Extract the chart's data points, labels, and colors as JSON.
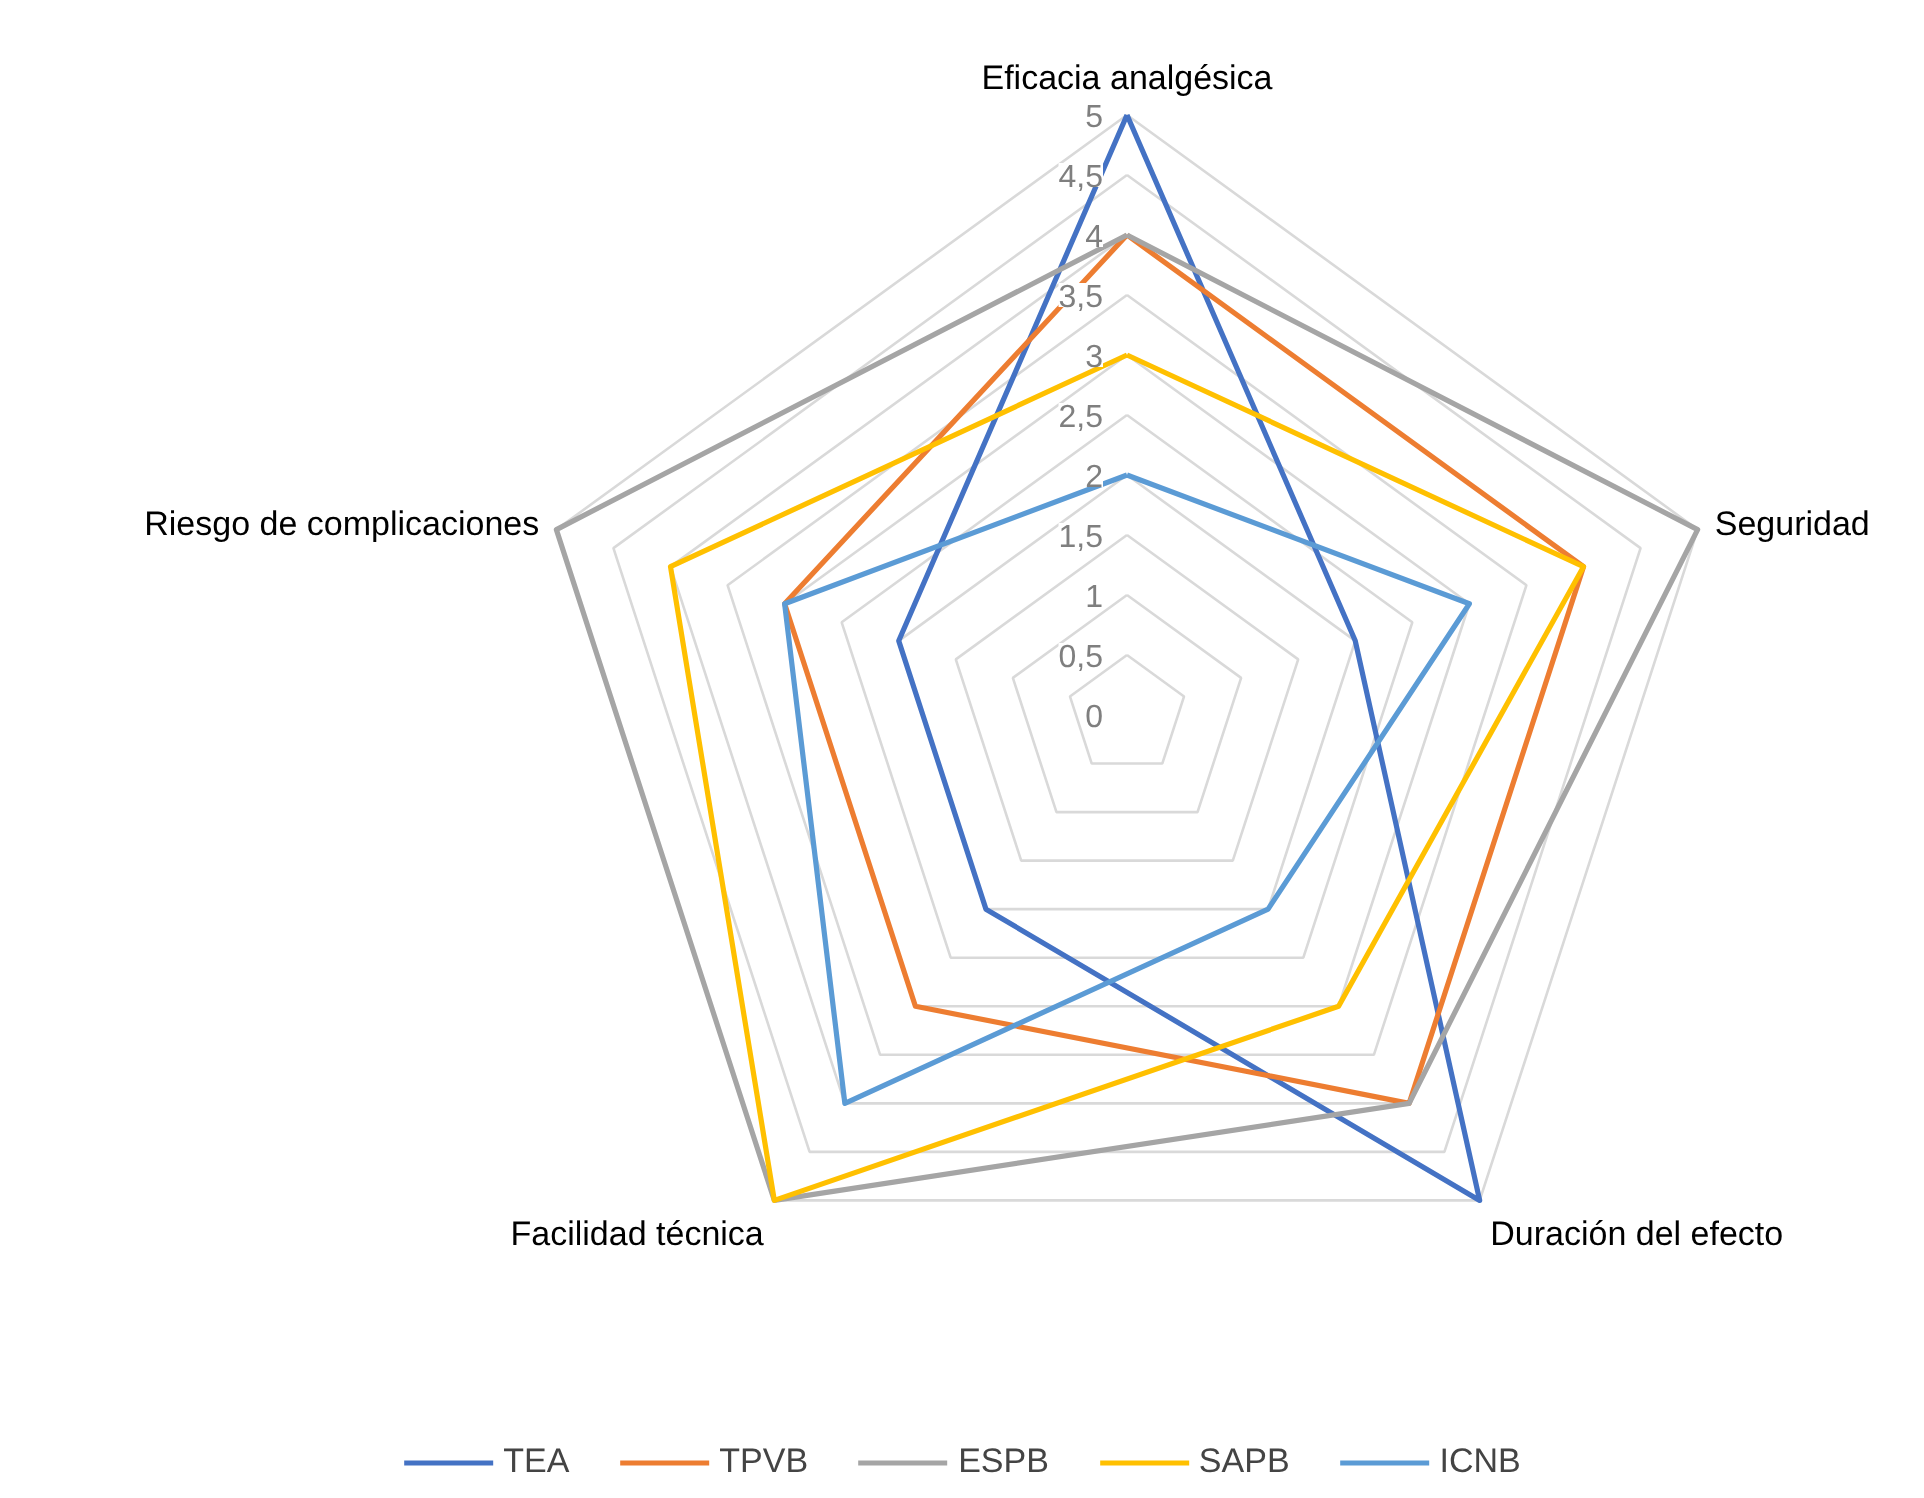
{
  "chart_data": {
    "type": "radar",
    "categories": [
      "Eficacia analgésica",
      "Seguridad",
      "Duración del efecto",
      "Facilidad técnica",
      "Riesgo de complicaciones"
    ],
    "series": [
      {
        "name": "TEA",
        "color": "#4472c4",
        "values": [
          5,
          2,
          5,
          2,
          2
        ]
      },
      {
        "name": "TPVB",
        "color": "#ed7d31",
        "values": [
          4,
          4,
          4,
          3,
          3
        ]
      },
      {
        "name": "ESPB",
        "color": "#a5a5a5",
        "values": [
          4,
          5,
          4,
          5,
          5
        ]
      },
      {
        "name": "SAPB",
        "color": "#ffc000",
        "values": [
          3,
          4,
          3,
          5,
          4
        ]
      },
      {
        "name": "ICNB",
        "color": "#5b9bd5",
        "values": [
          2,
          3,
          2,
          4,
          3
        ]
      }
    ],
    "ylim": [
      0,
      5
    ],
    "yticks": [
      0,
      {
        "value": 0.5,
        "label": "0,5"
      },
      1,
      {
        "value": 1.5,
        "label": "1,5"
      },
      2,
      {
        "value": 2.5,
        "label": "2,5"
      },
      3,
      {
        "value": 3.5,
        "label": "3,5"
      },
      4,
      {
        "value": 4.5,
        "label": "4,5"
      },
      5
    ],
    "grid": true,
    "legend": "bottom",
    "marker": "none",
    "line_style": "solid"
  }
}
